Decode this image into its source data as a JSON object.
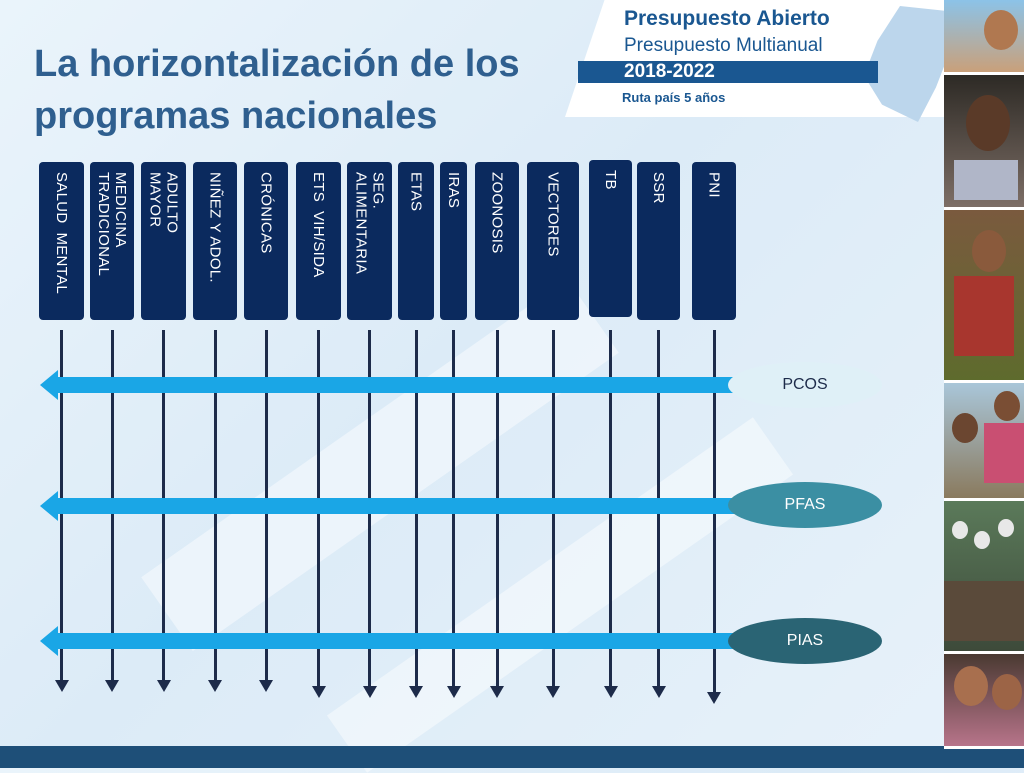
{
  "title": {
    "line1": "La horizontalización de los",
    "line2": "programas nacionales"
  },
  "logo": {
    "name": "Presupuesto Abierto",
    "subtitle": "Presupuesto Multianual",
    "years": "2018-2022",
    "tagline": "Ruta país 5 años"
  },
  "programs": [
    "SALUD  MENTAL",
    "MEDICINA\nTRADICIONAL",
    "ADULTO\nMAYOR",
    "NIÑEZ Y ADOL.",
    "CRÓNICAS",
    "ETS  VIH/SIDA",
    "SEG.\nALIMENTARIA",
    "ETAS",
    "IRAS",
    "ZOONOSIS",
    "VECTORES",
    "TB",
    "SSR",
    "PNI"
  ],
  "levels": [
    {
      "label": "PCOS",
      "color": "#dff0f7",
      "text_color": "#1d2b4a"
    },
    {
      "label": "PFAS",
      "color": "#3b8fa3",
      "text_color": "#ffffff"
    },
    {
      "label": "PIAS",
      "color": "#2a6474",
      "text_color": "#ffffff"
    }
  ],
  "colors": {
    "program_box": "#0b2a5e",
    "arrow": "#1aa6e6",
    "title": "#2f5f8f",
    "brand": "#1a5791"
  },
  "photos": [
    "child-photo",
    "girl-photo",
    "elder-photo",
    "children-photo",
    "classroom-photo",
    "kids-photo"
  ]
}
